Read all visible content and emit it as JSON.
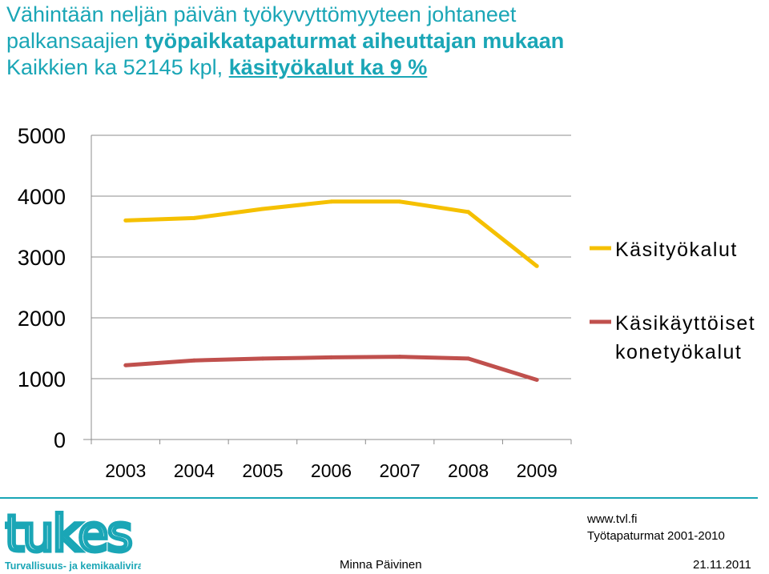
{
  "title": {
    "line1": "Vähintään neljän päivän työkyvyttömyyteen johtaneet",
    "line2_plain": "palkansaajien ",
    "line2_bold": "työpaikkatapaturmat aiheuttajan mukaan",
    "line3_plain": "Kaikkien ka 52145 kpl, ",
    "line3_emph": "käsityökalut ka 9 %"
  },
  "chart_data": {
    "type": "line",
    "x": [
      "2003",
      "2004",
      "2005",
      "2006",
      "2007",
      "2008",
      "2009"
    ],
    "ylim": [
      0,
      5000
    ],
    "yticks": [
      "0",
      "1000",
      "2000",
      "3000",
      "4000",
      "5000"
    ],
    "grid": true,
    "legend": "right",
    "series": [
      {
        "name": "Käsityökalut",
        "color": "#f5c000",
        "values": [
          3600,
          3640,
          3790,
          3910,
          3910,
          3740,
          2850
        ]
      },
      {
        "name": "Käsikäyttöiset konetyökalut",
        "name_lines": [
          "Käsikäyttöiset",
          "konetyökalut"
        ],
        "color": "#c0504d",
        "values": [
          1220,
          1300,
          1330,
          1350,
          1360,
          1330,
          980
        ]
      }
    ]
  },
  "logo": {
    "wordmark": "tukes",
    "subtitle": "Turvallisuus- ja kemikaalivirasto",
    "color": "#1aa6b6"
  },
  "footer": {
    "url": "www.tvl.fi",
    "source": "Työtapaturmat 2001-2010",
    "author": "Minna Päivinen",
    "date": "21.11.2011"
  }
}
